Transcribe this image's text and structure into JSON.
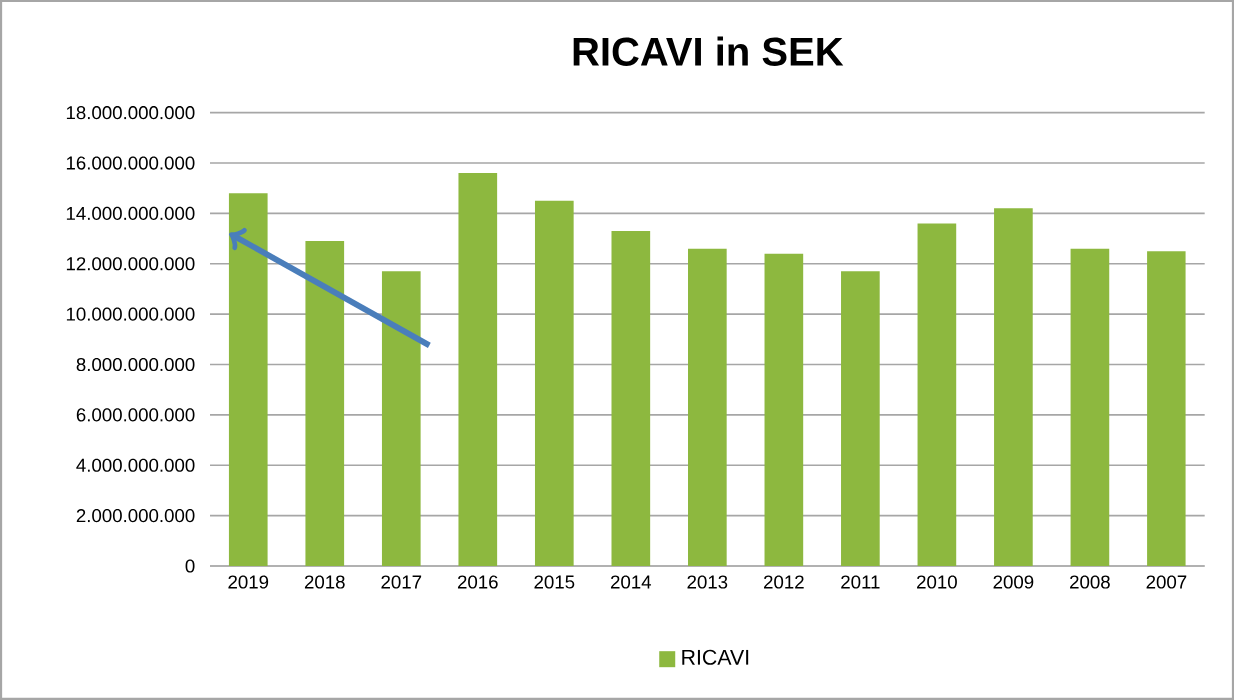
{
  "chart_data": {
    "type": "bar",
    "title": "RICAVI in SEK",
    "categories": [
      "2019",
      "2018",
      "2017",
      "2016",
      "2015",
      "2014",
      "2013",
      "2012",
      "2011",
      "2010",
      "2009",
      "2008",
      "2007"
    ],
    "series": [
      {
        "name": "RICAVI",
        "color": "#8db83f",
        "values": [
          14800000000,
          12900000000,
          11700000000,
          15600000000,
          14500000000,
          13300000000,
          12600000000,
          12400000000,
          11700000000,
          13600000000,
          14200000000,
          12600000000,
          12500000000
        ]
      }
    ],
    "ylim": [
      0,
      18000000000
    ],
    "yticks": [
      0,
      {
        "value": 2000000000,
        "label": "2.000.000.000"
      },
      {
        "value": 4000000000,
        "label": "4.000.000.000"
      },
      {
        "value": 6000000000,
        "label": "6.000.000.000"
      },
      {
        "value": 8000000000,
        "label": "8.000.000.000"
      },
      {
        "value": 10000000000,
        "label": "10.000.000.000"
      },
      {
        "value": 12000000000,
        "label": "12.000.000.000"
      },
      {
        "value": 14000000000,
        "label": "14.000.000.000"
      },
      {
        "value": 16000000000,
        "label": "16.000.000.000"
      },
      {
        "value": 18000000000,
        "label": "18.000.000.000"
      }
    ],
    "grid": "y",
    "legend": "bottom"
  }
}
